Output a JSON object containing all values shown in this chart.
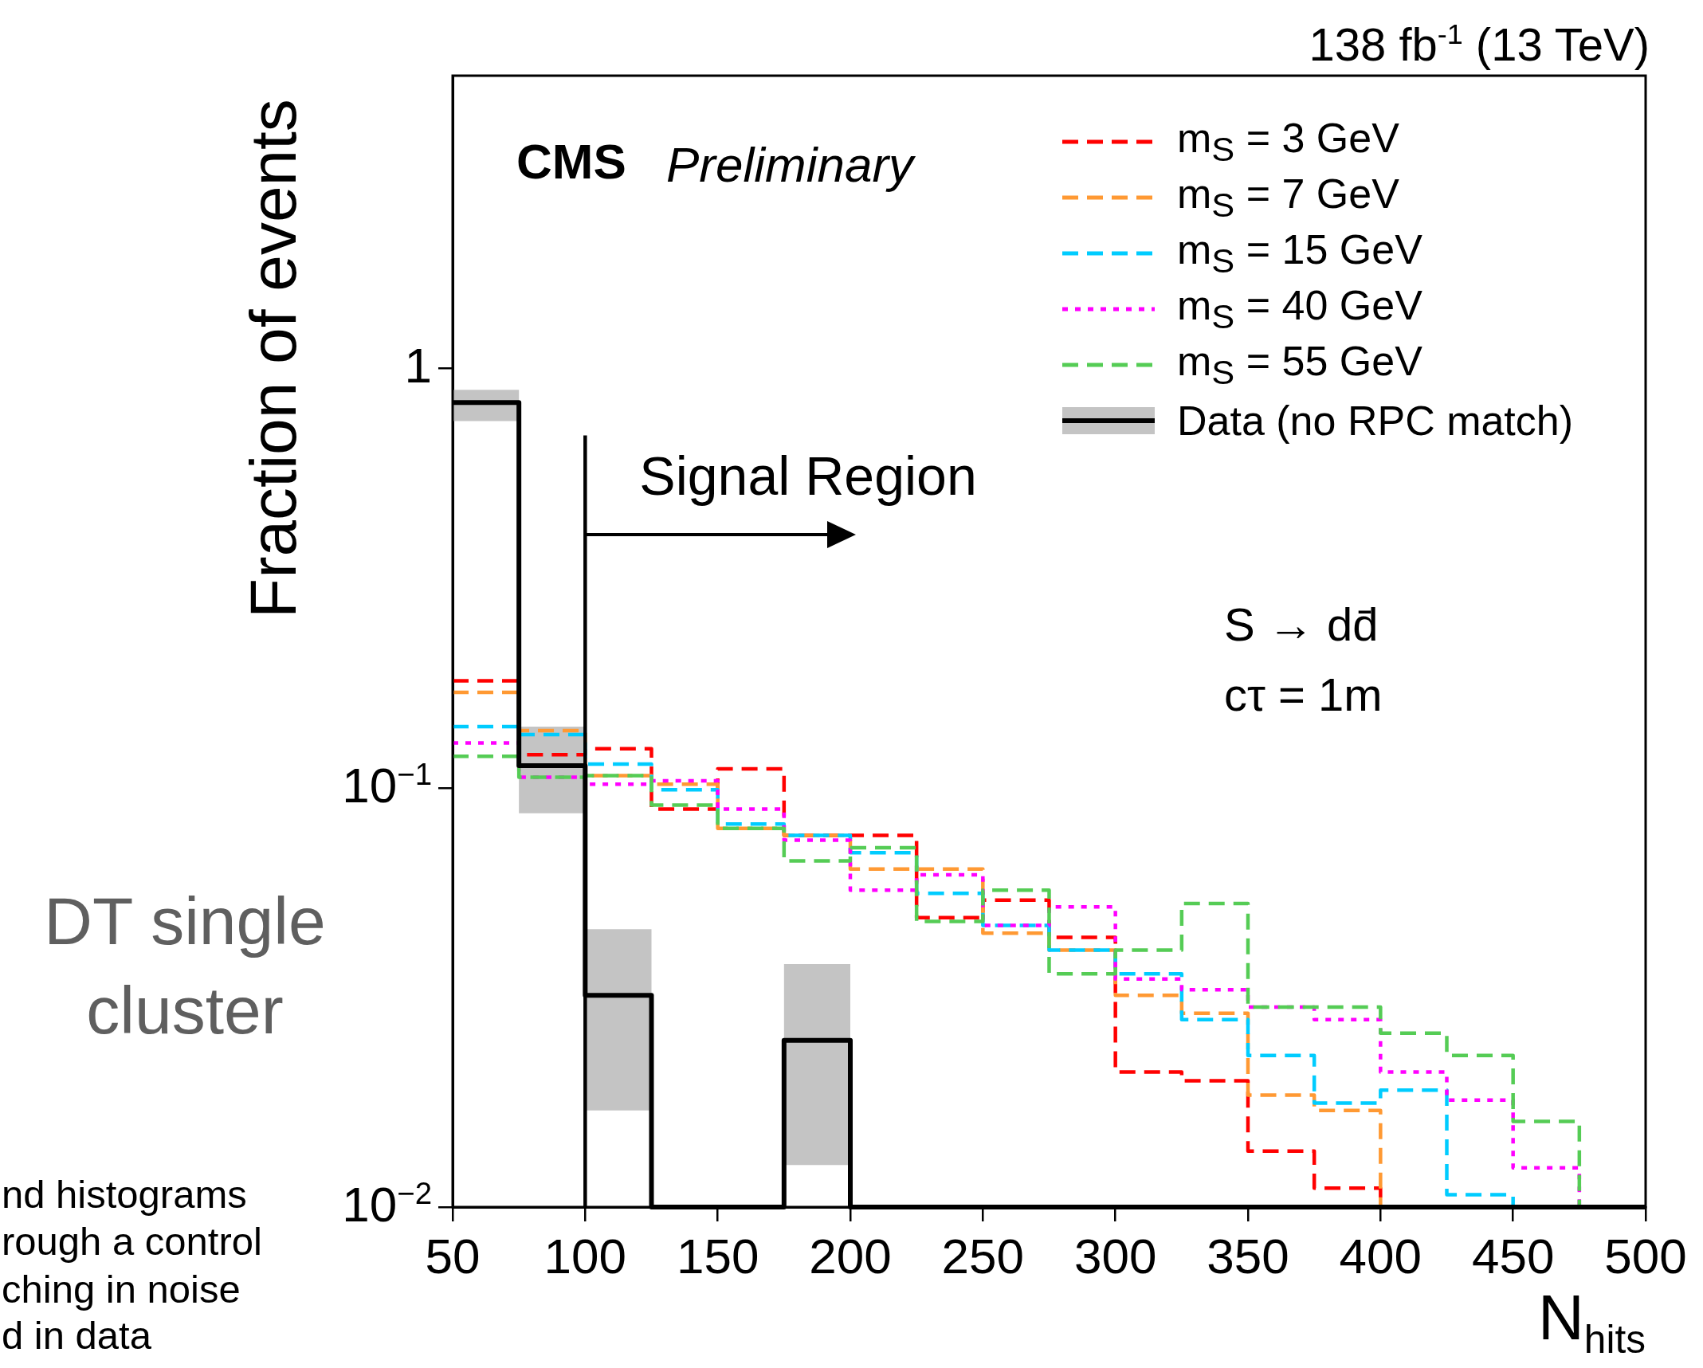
{
  "chart_data": {
    "type": "histogram",
    "xlabel": "N$_{hits}$",
    "ylabel": "Fraction of events",
    "bins": [
      50,
      75,
      100,
      125,
      150,
      175,
      200,
      225,
      250,
      275,
      300,
      325,
      350,
      375,
      400,
      425,
      450,
      475,
      500
    ],
    "series": [
      {
        "name": "m$_{S}$ = 3 GeV",
        "color": "#ff0000",
        "line_style": "dashed",
        "values": [
          0.18,
          0.12,
          0.124,
          0.089,
          0.111,
          0.077,
          0.077,
          0.049,
          0.054,
          0.044,
          0.021,
          0.02,
          0.0136,
          0.0111,
          null,
          null,
          null,
          null
        ]
      },
      {
        "name": "m$_{S}$ = 7 GeV",
        "color": "#ff9933",
        "line_style": "dashed",
        "values": [
          0.169,
          0.137,
          0.107,
          0.102,
          0.08,
          0.077,
          0.064,
          0.064,
          0.045,
          0.041,
          0.032,
          0.029,
          0.0185,
          0.017,
          null,
          null,
          null,
          null
        ]
      },
      {
        "name": "m$_{S}$ = 15 GeV",
        "color": "#00ccff",
        "line_style": "dashed",
        "values": [
          0.14,
          0.134,
          0.114,
          0.099,
          0.082,
          0.077,
          0.07,
          0.056,
          0.047,
          0.041,
          0.036,
          0.028,
          0.023,
          0.0177,
          0.019,
          0.0107,
          null,
          null
        ]
      },
      {
        "name": "m$_{S}$ = 40 GeV",
        "color": "#ff00ff",
        "line_style": "dotted",
        "values": [
          0.128,
          0.106,
          0.102,
          0.104,
          0.089,
          0.075,
          0.057,
          0.062,
          0.047,
          0.052,
          0.035,
          0.033,
          0.03,
          0.028,
          0.021,
          0.018,
          0.0124,
          null
        ]
      },
      {
        "name": "m$_{S}$ = 55 GeV",
        "color": "#55cc55",
        "line_style": "dashed",
        "values": [
          0.119,
          0.106,
          0.107,
          0.091,
          0.08,
          0.067,
          0.072,
          0.048,
          0.057,
          0.036,
          0.041,
          0.053,
          0.03,
          0.03,
          0.026,
          0.023,
          0.016,
          null
        ]
      },
      {
        "name": "Data (no RPC match)",
        "color": "#000000",
        "line_style": "solid",
        "values": [
          0.83,
          0.113,
          0.032,
          null,
          null,
          0.025,
          null,
          null,
          null,
          null,
          null,
          null,
          null,
          null,
          null,
          null,
          null,
          null
        ]
      },
      {
        "type": "bar",
        "color": "#c4c4c4",
        "x": [
          62.5,
          87.5,
          112.5,
          187.5
        ],
        "base": [
          0.75,
          0.087,
          0.017,
          0.0126
        ],
        "values": [
          0.14,
          0.053,
          0.029,
          0.0254
        ]
      }
    ],
    "xlim": [
      50,
      500
    ],
    "xticks": [
      50,
      100,
      150,
      200,
      250,
      300,
      350,
      400,
      450,
      500
    ],
    "ylim": [
      0.01,
      5
    ],
    "yticks": [
      {
        "value": 0.01,
        "label": "10$^{−2}$"
      },
      {
        "value": 0.1,
        "label": "10$^{−1}$"
      },
      1
    ],
    "log": "y",
    "legend": "top right",
    "ref_lines": [
      {
        "axis": "x",
        "value": 100,
        "label": "Signal Region"
      }
    ],
    "annotations": [
      "CMS",
      "Preliminary",
      "138 fb$^{-1}$ (13 TeV)",
      "S → dd̄",
      "cτ = 1m",
      "DT single cluster",
      "nd histograms",
      "rough a control",
      "ching in noise",
      "d in data"
    ]
  }
}
